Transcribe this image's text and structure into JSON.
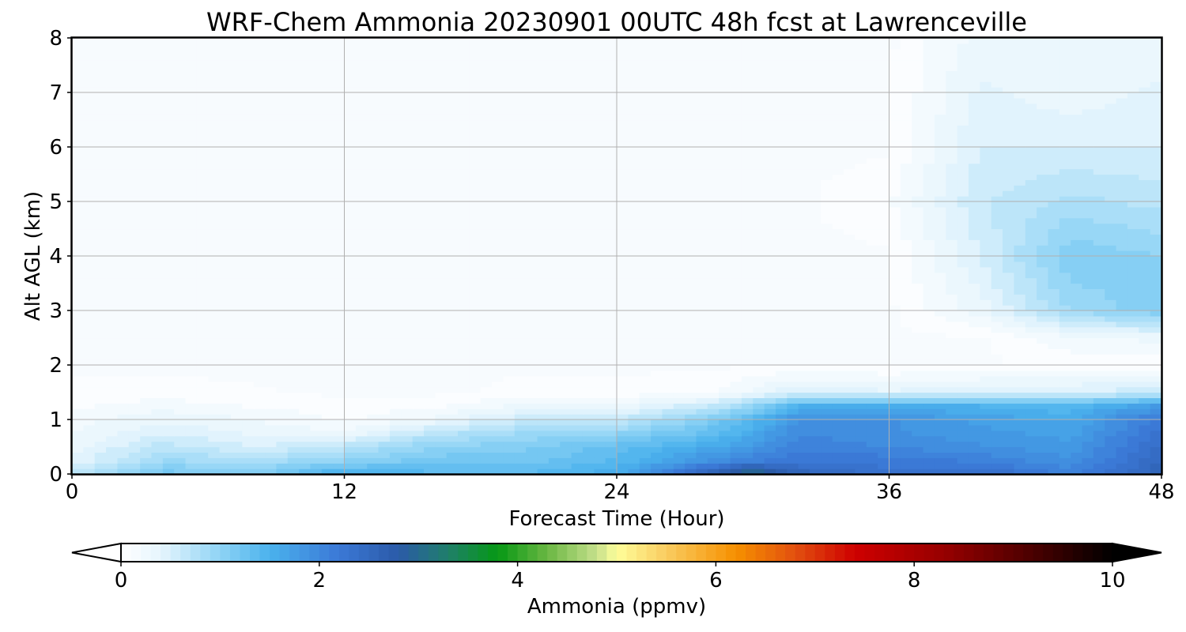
{
  "chart_data": {
    "type": "heatmap",
    "title": "WRF-Chem Ammonia  20230901 00UTC 48h fcst at Lawrenceville",
    "xlabel": "Forecast Time (Hour)",
    "ylabel": "Alt AGL (km)",
    "xlim": [
      0,
      48
    ],
    "ylim": [
      0,
      8
    ],
    "xticks": [
      "0",
      "12",
      "24",
      "36",
      "48"
    ],
    "yticks": [
      "0",
      "1",
      "2",
      "3",
      "4",
      "5",
      "6",
      "7",
      "8"
    ],
    "grid": true,
    "colorbar": {
      "label": "Ammonia  (ppmv)",
      "min": 0,
      "max": 10,
      "ticks": [
        "0",
        "2",
        "4",
        "6",
        "8",
        "10"
      ],
      "extend": "both",
      "under_color": "#ffffff",
      "over_color": "#000000",
      "stops": [
        {
          "v": 0.0,
          "c": "#ffffff"
        },
        {
          "v": 0.4,
          "c": "#e6f5fd"
        },
        {
          "v": 1.0,
          "c": "#8fd3f5"
        },
        {
          "v": 1.5,
          "c": "#4ab2ed"
        },
        {
          "v": 2.2,
          "c": "#3b78d6"
        },
        {
          "v": 2.8,
          "c": "#2b5aa8"
        },
        {
          "v": 3.3,
          "c": "#1f7f6a"
        },
        {
          "v": 3.8,
          "c": "#069814"
        },
        {
          "v": 4.3,
          "c": "#6ab743"
        },
        {
          "v": 4.8,
          "c": "#c6e08c"
        },
        {
          "v": 5.0,
          "c": "#fefe9a"
        },
        {
          "v": 5.5,
          "c": "#f9cc60"
        },
        {
          "v": 6.2,
          "c": "#f69000"
        },
        {
          "v": 6.8,
          "c": "#e2500f"
        },
        {
          "v": 7.4,
          "c": "#ce0000"
        },
        {
          "v": 8.3,
          "c": "#970000"
        },
        {
          "v": 9.2,
          "c": "#4a0000"
        },
        {
          "v": 10.0,
          "c": "#000000"
        }
      ]
    },
    "hours": [
      0,
      4,
      8,
      12,
      16,
      20,
      24,
      28,
      30,
      32,
      36,
      40,
      44,
      48
    ],
    "altitudes_km": [
      0,
      0.25,
      0.5,
      0.75,
      1.0,
      1.25,
      1.5,
      2.0,
      2.5,
      3.0,
      4.0,
      5.0,
      6.0,
      7.0,
      8.0
    ],
    "values_ppmv": [
      [
        0.7,
        1.2,
        1.1,
        1.6,
        1.4,
        1.4,
        1.6,
        2.6,
        3.3,
        2.6,
        2.3,
        2.4,
        2.1,
        2.6
      ],
      [
        0.4,
        0.9,
        0.8,
        1.0,
        1.2,
        1.2,
        1.4,
        1.9,
        2.1,
        2.2,
        2.2,
        2.1,
        1.9,
        2.5
      ],
      [
        0.3,
        0.7,
        0.5,
        0.7,
        1.0,
        1.1,
        1.3,
        1.6,
        1.8,
        2.1,
        2.0,
        1.9,
        1.8,
        2.4
      ],
      [
        0.25,
        0.5,
        0.35,
        0.3,
        0.7,
        0.9,
        1.0,
        1.3,
        1.6,
        2.0,
        1.9,
        1.8,
        1.7,
        2.3
      ],
      [
        0.2,
        0.35,
        0.25,
        0.1,
        0.3,
        0.6,
        0.6,
        1.1,
        1.4,
        1.9,
        1.9,
        1.7,
        1.6,
        2.2
      ],
      [
        0.1,
        0.2,
        0.12,
        0.05,
        0.1,
        0.3,
        0.3,
        0.6,
        1.0,
        1.5,
        1.6,
        1.5,
        1.4,
        1.8
      ],
      [
        0.05,
        0.05,
        0.03,
        0.0,
        0.0,
        0.05,
        0.05,
        0.1,
        0.3,
        0.5,
        0.4,
        0.5,
        0.5,
        0.6
      ],
      [
        0.0,
        0.0,
        0.0,
        0.0,
        0.0,
        0.0,
        0.0,
        0.0,
        0.0,
        0.0,
        0.0,
        0.0,
        0.05,
        0.05
      ],
      [
        0.0,
        0.0,
        0.0,
        0.0,
        0.0,
        0.0,
        0.0,
        0.0,
        0.0,
        0.0,
        0.0,
        0.0,
        0.2,
        0.3
      ],
      [
        0.0,
        0.0,
        0.0,
        0.0,
        0.0,
        0.0,
        0.0,
        0.0,
        0.0,
        0.0,
        0.0,
        0.3,
        0.9,
        1.1
      ],
      [
        0.0,
        0.0,
        0.0,
        0.0,
        0.0,
        0.0,
        0.0,
        0.0,
        0.0,
        0.0,
        0.0,
        0.5,
        1.1,
        1.0
      ],
      [
        0.0,
        0.0,
        0.0,
        0.0,
        0.0,
        0.0,
        0.0,
        0.0,
        0.0,
        0.0,
        0.1,
        0.6,
        0.8,
        0.7
      ],
      [
        0.0,
        0.0,
        0.0,
        0.0,
        0.0,
        0.0,
        0.0,
        0.0,
        0.0,
        0.0,
        0.0,
        0.5,
        0.5,
        0.5
      ],
      [
        0.0,
        0.0,
        0.0,
        0.0,
        0.0,
        0.0,
        0.0,
        0.0,
        0.0,
        0.0,
        0.0,
        0.4,
        0.3,
        0.4
      ],
      [
        0.0,
        0.0,
        0.0,
        0.0,
        0.0,
        0.0,
        0.0,
        0.0,
        0.0,
        0.0,
        0.0,
        0.3,
        0.35,
        0.3
      ]
    ]
  }
}
